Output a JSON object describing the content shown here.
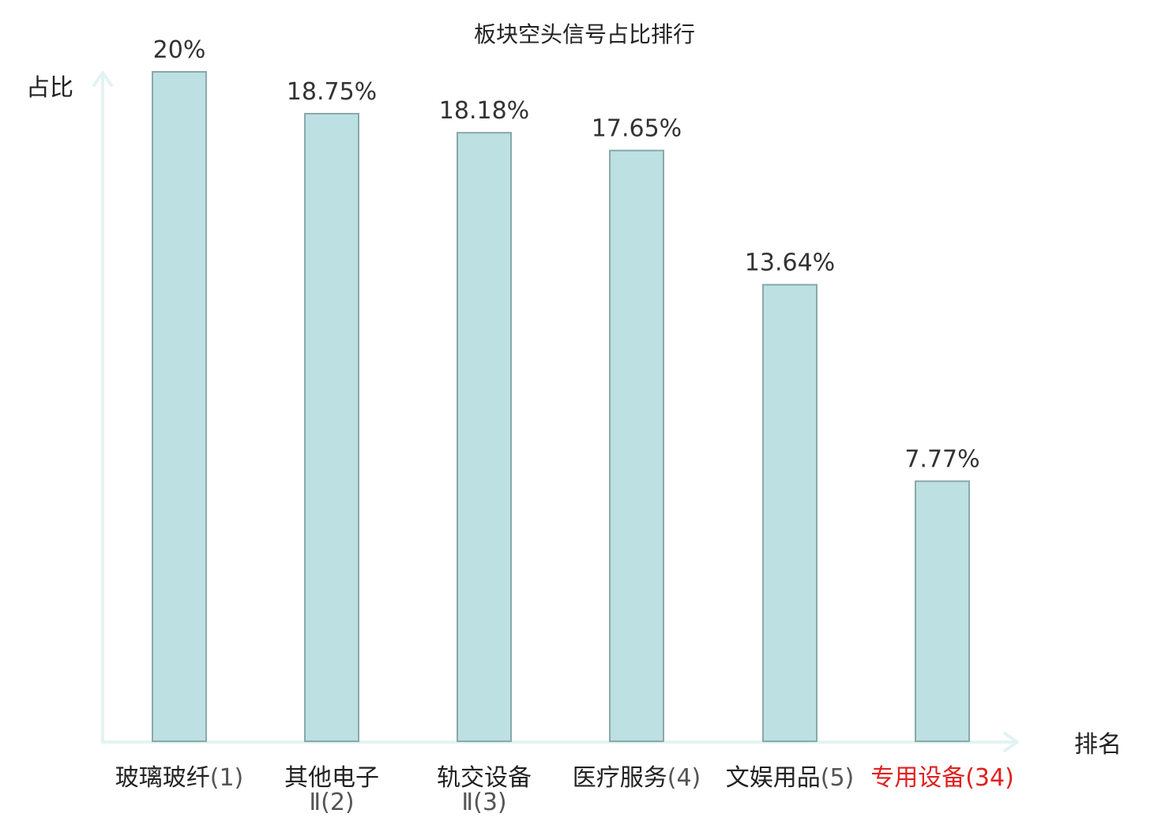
{
  "chart_data": {
    "type": "bar",
    "title": "板块空头信号占比排行",
    "ylabel": "占比",
    "xlabel": "排名",
    "ylim": [
      0,
      20
    ],
    "grid": false,
    "categories": [
      {
        "name": "玻璃玻纤",
        "rank": "(1)",
        "highlight": false
      },
      {
        "name": "其他电子",
        "rank": "Ⅱ(2)",
        "highlight": false
      },
      {
        "name": "轨交设备",
        "rank": "Ⅱ(3)",
        "highlight": false
      },
      {
        "name": "医疗服务",
        "rank": "(4)",
        "highlight": false
      },
      {
        "name": "文娱用品",
        "rank": "(5)",
        "highlight": false
      },
      {
        "name": "专用设备",
        "rank": "(34)",
        "highlight": true
      }
    ],
    "values": [
      20,
      18.75,
      18.18,
      17.65,
      13.64,
      7.77
    ],
    "value_labels": [
      "20%",
      "18.75%",
      "18.18%",
      "17.65%",
      "13.64%",
      "7.77%"
    ],
    "colors": {
      "bar_fill": "#bde0e2",
      "bar_stroke": "#8aa8a9",
      "axis": "#e3f3f1",
      "highlight_text": "#e02020"
    }
  }
}
